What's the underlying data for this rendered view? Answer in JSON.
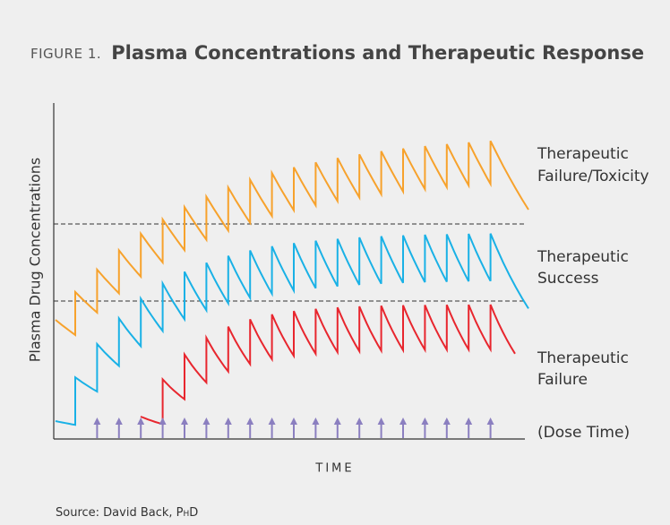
{
  "figure": {
    "label": "FIGURE 1.",
    "title": "Plasma Concentrations and Therapeutic Response"
  },
  "y_axis_label": "Plasma Drug Concentrations",
  "x_axis_label": "TIME",
  "zones": [
    {
      "lines": [
        "Therapeutic",
        "Failure/Toxicity"
      ]
    },
    {
      "lines": [
        "Therapeutic",
        "Success"
      ]
    },
    {
      "lines": [
        "Therapeutic",
        "Failure"
      ]
    }
  ],
  "dose_label": "(Dose Time)",
  "source": {
    "text": "Source: David Back,",
    "degree": "PhD"
  }
}
